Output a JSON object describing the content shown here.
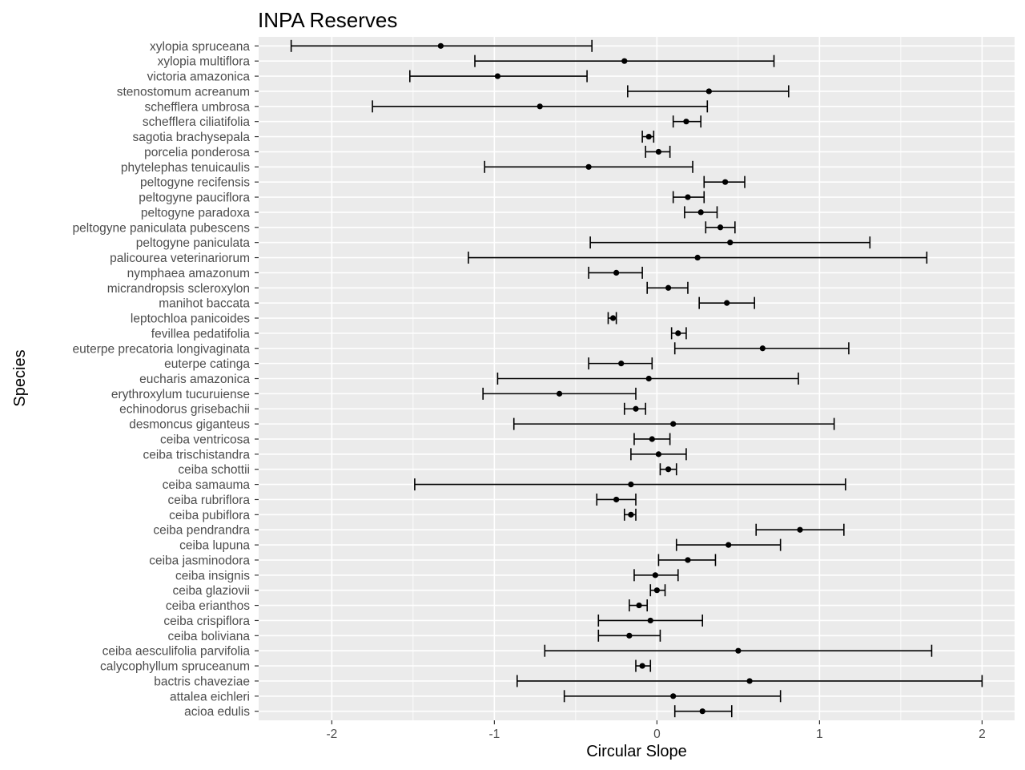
{
  "chart_data": {
    "type": "errorbar",
    "title": "INPA Reserves",
    "xlabel": "Circular Slope",
    "ylabel": "Species",
    "xlim": [
      -2.45,
      2.2
    ],
    "xticks": [
      -2,
      -1,
      0,
      1,
      2
    ],
    "xtick_labels": [
      "-2",
      "-1",
      "0",
      "1",
      "2"
    ],
    "grid": true,
    "legend": "none",
    "colors": {
      "panel": "#ebebeb",
      "grid": "#ffffff",
      "marks": "#000000",
      "tick_text": "#4d4d4d"
    },
    "series": [
      {
        "species": "xylopia spruceana",
        "estimate": -1.33,
        "lower": -2.25,
        "upper": -0.4
      },
      {
        "species": "xylopia multiflora",
        "estimate": -0.2,
        "lower": -1.12,
        "upper": 0.72
      },
      {
        "species": "victoria amazonica",
        "estimate": -0.98,
        "lower": -1.52,
        "upper": -0.43
      },
      {
        "species": "stenostomum acreanum",
        "estimate": 0.32,
        "lower": -0.18,
        "upper": 0.81
      },
      {
        "species": "schefflera umbrosa",
        "estimate": -0.72,
        "lower": -1.75,
        "upper": 0.31
      },
      {
        "species": "schefflera ciliatifolia",
        "estimate": 0.18,
        "lower": 0.1,
        "upper": 0.27
      },
      {
        "species": "sagotia brachysepala",
        "estimate": -0.05,
        "lower": -0.09,
        "upper": -0.02
      },
      {
        "species": "porcelia ponderosa",
        "estimate": 0.01,
        "lower": -0.07,
        "upper": 0.08
      },
      {
        "species": "phytelephas tenuicaulis",
        "estimate": -0.42,
        "lower": -1.06,
        "upper": 0.22
      },
      {
        "species": "peltogyne recifensis",
        "estimate": 0.42,
        "lower": 0.29,
        "upper": 0.54
      },
      {
        "species": "peltogyne pauciflora",
        "estimate": 0.19,
        "lower": 0.1,
        "upper": 0.29
      },
      {
        "species": "peltogyne paradoxa",
        "estimate": 0.27,
        "lower": 0.17,
        "upper": 0.37
      },
      {
        "species": "peltogyne paniculata pubescens",
        "estimate": 0.39,
        "lower": 0.3,
        "upper": 0.48
      },
      {
        "species": "peltogyne paniculata",
        "estimate": 0.45,
        "lower": -0.41,
        "upper": 1.31
      },
      {
        "species": "palicourea veterinariorum",
        "estimate": 0.25,
        "lower": -1.16,
        "upper": 1.66
      },
      {
        "species": "nymphaea amazonum",
        "estimate": -0.25,
        "lower": -0.42,
        "upper": -0.09
      },
      {
        "species": "micrandropsis scleroxylon",
        "estimate": 0.07,
        "lower": -0.06,
        "upper": 0.19
      },
      {
        "species": "manihot baccata",
        "estimate": 0.43,
        "lower": 0.26,
        "upper": 0.6
      },
      {
        "species": "leptochloa panicoides",
        "estimate": -0.27,
        "lower": -0.3,
        "upper": -0.25
      },
      {
        "species": "fevillea pedatifolia",
        "estimate": 0.13,
        "lower": 0.09,
        "upper": 0.18
      },
      {
        "species": "euterpe precatoria longivaginata",
        "estimate": 0.65,
        "lower": 0.11,
        "upper": 1.18
      },
      {
        "species": "euterpe catinga",
        "estimate": -0.22,
        "lower": -0.42,
        "upper": -0.03
      },
      {
        "species": "eucharis amazonica",
        "estimate": -0.05,
        "lower": -0.98,
        "upper": 0.87
      },
      {
        "species": "erythroxylum tucuruiense",
        "estimate": -0.6,
        "lower": -1.07,
        "upper": -0.13
      },
      {
        "species": "echinodorus grisebachii",
        "estimate": -0.13,
        "lower": -0.2,
        "upper": -0.07
      },
      {
        "species": "desmoncus giganteus",
        "estimate": 0.1,
        "lower": -0.88,
        "upper": 1.09
      },
      {
        "species": "ceiba ventricosa",
        "estimate": -0.03,
        "lower": -0.14,
        "upper": 0.08
      },
      {
        "species": "ceiba trischistandra",
        "estimate": 0.01,
        "lower": -0.16,
        "upper": 0.18
      },
      {
        "species": "ceiba schottii",
        "estimate": 0.07,
        "lower": 0.02,
        "upper": 0.12
      },
      {
        "species": "ceiba samauma",
        "estimate": -0.16,
        "lower": -1.49,
        "upper": 1.16
      },
      {
        "species": "ceiba rubriflora",
        "estimate": -0.25,
        "lower": -0.37,
        "upper": -0.13
      },
      {
        "species": "ceiba pubiflora",
        "estimate": -0.16,
        "lower": -0.2,
        "upper": -0.13
      },
      {
        "species": "ceiba pendrandra",
        "estimate": 0.88,
        "lower": 0.61,
        "upper": 1.15
      },
      {
        "species": "ceiba lupuna",
        "estimate": 0.44,
        "lower": 0.12,
        "upper": 0.76
      },
      {
        "species": "ceiba jasminodora",
        "estimate": 0.19,
        "lower": 0.01,
        "upper": 0.36
      },
      {
        "species": "ceiba insignis",
        "estimate": -0.01,
        "lower": -0.14,
        "upper": 0.13
      },
      {
        "species": "ceiba glaziovii",
        "estimate": 0.0,
        "lower": -0.04,
        "upper": 0.05
      },
      {
        "species": "ceiba erianthos",
        "estimate": -0.11,
        "lower": -0.17,
        "upper": -0.06
      },
      {
        "species": "ceiba crispiflora",
        "estimate": -0.04,
        "lower": -0.36,
        "upper": 0.28
      },
      {
        "species": "ceiba boliviana",
        "estimate": -0.17,
        "lower": -0.36,
        "upper": 0.02
      },
      {
        "species": "ceiba aesculifolia parvifolia",
        "estimate": 0.5,
        "lower": -0.69,
        "upper": 1.69
      },
      {
        "species": "calycophyllum spruceanum",
        "estimate": -0.09,
        "lower": -0.13,
        "upper": -0.04
      },
      {
        "species": "bactris chaveziae",
        "estimate": 0.57,
        "lower": -0.86,
        "upper": 2.0
      },
      {
        "species": "attalea eichleri",
        "estimate": 0.1,
        "lower": -0.57,
        "upper": 0.76
      },
      {
        "species": "acioa edulis",
        "estimate": 0.28,
        "lower": 0.11,
        "upper": 0.46
      }
    ]
  }
}
